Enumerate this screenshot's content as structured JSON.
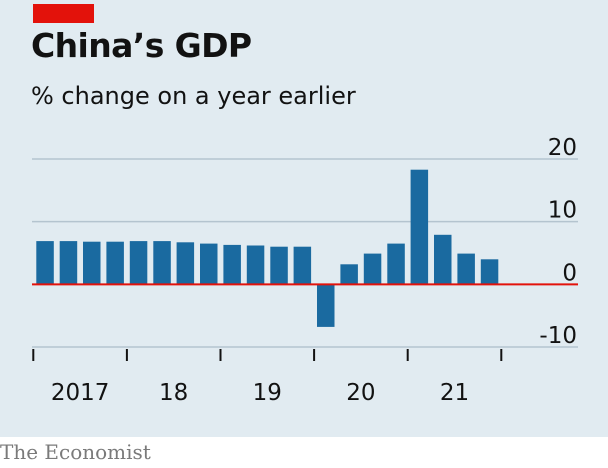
{
  "title": "China’s GDP",
  "subtitle": "% change on a year earlier",
  "source": "The Economist",
  "colors": {
    "background": "#e1ebf1",
    "accent": "#e3120b",
    "bar": "#1a6aa0",
    "gridline": "#b4c4cf",
    "zero_line": "#e3120b",
    "axis": "#121212"
  },
  "chart_data": {
    "type": "bar",
    "title": "China’s GDP",
    "subtitle": "% change on a year earlier",
    "xlabel": "",
    "ylabel": "",
    "ylim": [
      -10,
      20
    ],
    "yticks": [
      -10,
      0,
      10,
      20
    ],
    "grid": true,
    "categories": [
      "2017 Q1",
      "2017 Q2",
      "2017 Q3",
      "2017 Q4",
      "2018 Q1",
      "2018 Q2",
      "2018 Q3",
      "2018 Q4",
      "2019 Q1",
      "2019 Q2",
      "2019 Q3",
      "2019 Q4",
      "2020 Q1",
      "2020 Q2",
      "2020 Q3",
      "2020 Q4",
      "2021 Q1",
      "2021 Q2",
      "2021 Q3",
      "2021 Q4"
    ],
    "values": [
      6.9,
      6.9,
      6.8,
      6.8,
      6.9,
      6.9,
      6.7,
      6.5,
      6.3,
      6.2,
      6.0,
      6.0,
      -6.8,
      3.2,
      4.9,
      6.5,
      18.3,
      7.9,
      4.9,
      4.0
    ],
    "x_tick_labels": [
      "2017",
      "18",
      "19",
      "20",
      "21"
    ]
  }
}
